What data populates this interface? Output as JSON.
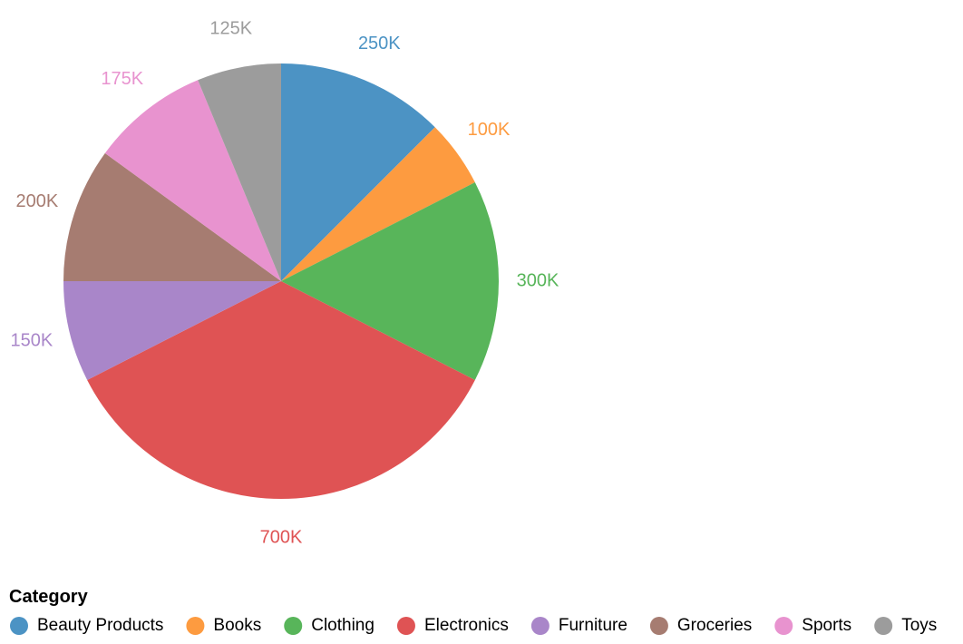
{
  "chart_data": {
    "type": "pie",
    "title": "",
    "legend_title": "Category",
    "legend_position": "bottom",
    "start_angle": "top",
    "direction": "clockwise",
    "categories": [
      "Beauty Products",
      "Books",
      "Clothing",
      "Electronics",
      "Furniture",
      "Groceries",
      "Sports",
      "Toys"
    ],
    "values": [
      250000,
      100000,
      300000,
      700000,
      150000,
      200000,
      175000,
      125000
    ],
    "value_labels": [
      "250K",
      "100K",
      "300K",
      "700K",
      "150K",
      "200K",
      "175K",
      "125K"
    ],
    "colors": [
      "#4c93c4",
      "#fd9b40",
      "#58b55a",
      "#df5354",
      "#a986c9",
      "#a67c71",
      "#e893cf",
      "#9c9c9c"
    ]
  }
}
